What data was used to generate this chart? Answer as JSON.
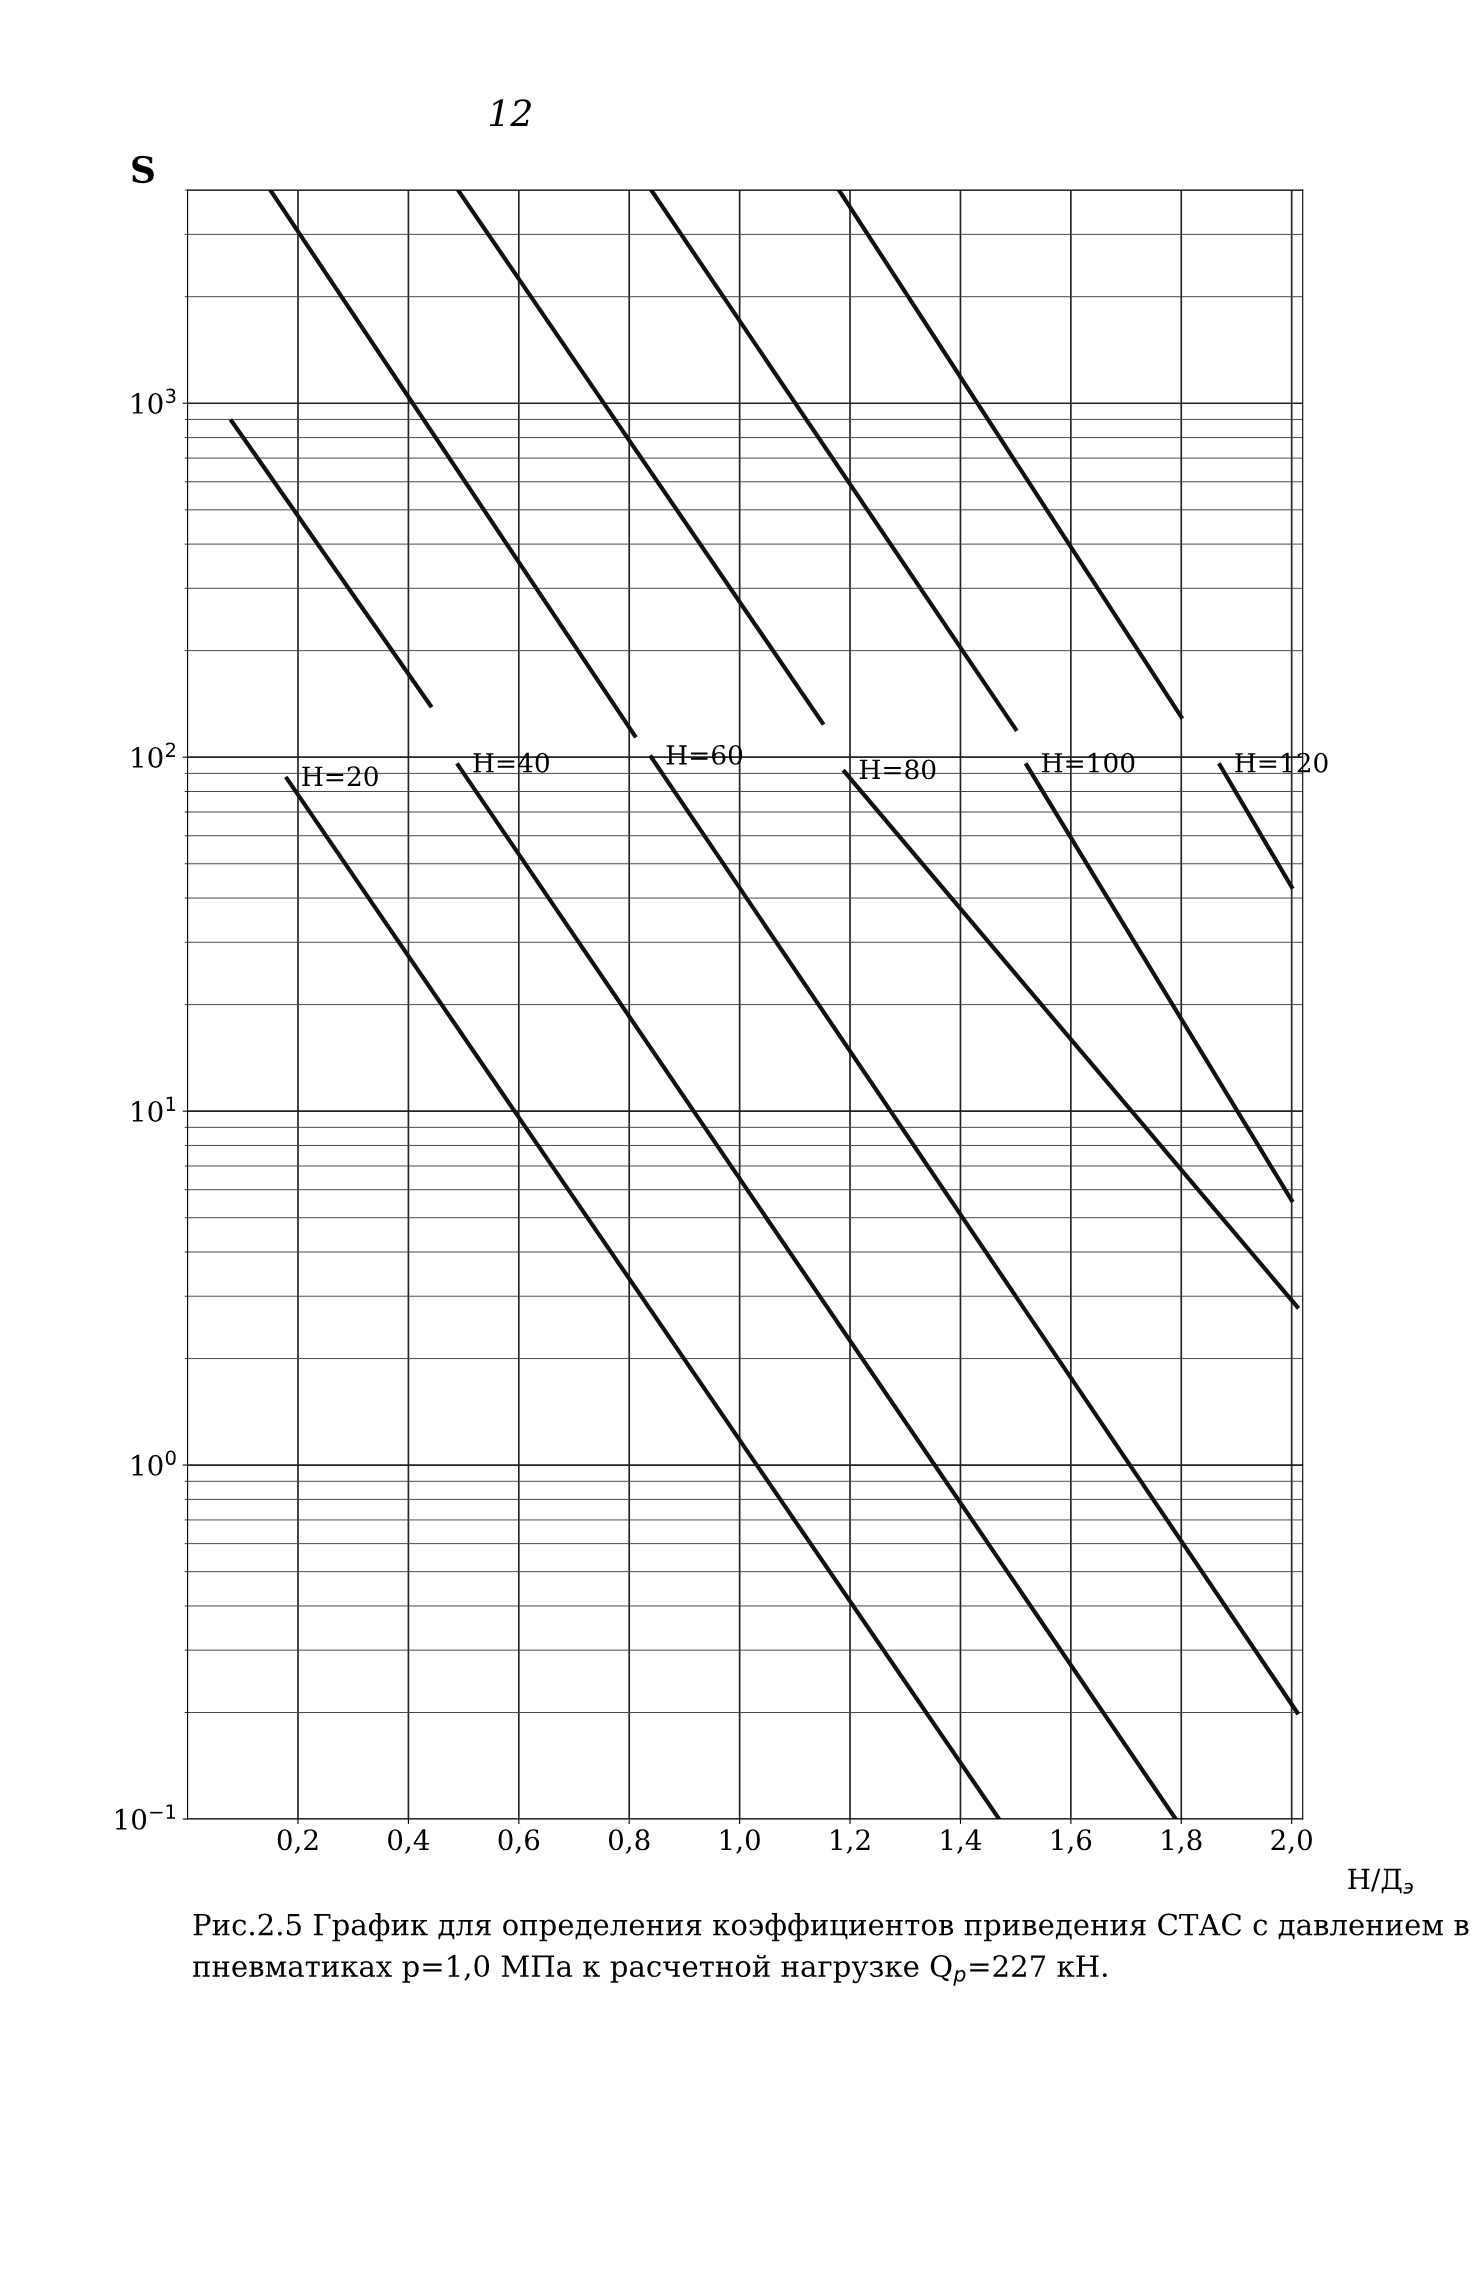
{
  "chart_data": {
    "type": "line",
    "title": "12",
    "ylabel": "S",
    "xlabel": "Н/Д$_{э}$",
    "annotations": [
      "Рис.2.5 График для определения коэффициентов приведения СТАС с давлением в пневматиках p=1,0 МПа к расчетной нагрузке Q$_{р}$=227 кН."
    ],
    "log": "y",
    "grid": true,
    "legend": false,
    "marker": "none",
    "line_style": "solid",
    "xlim": [
      0,
      2.02
    ],
    "ylim": [
      0.1,
      4000
    ],
    "xticks": [
      {
        "value": 0.2,
        "label": "0,2"
      },
      {
        "value": 0.4,
        "label": "0,4"
      },
      {
        "value": 0.6,
        "label": "0,6"
      },
      {
        "value": 0.8,
        "label": "0,8"
      },
      {
        "value": 1.0,
        "label": "1,0"
      },
      {
        "value": 1.2,
        "label": "1,2"
      },
      {
        "value": 1.4,
        "label": "1,4"
      },
      {
        "value": 1.6,
        "label": "1,6"
      },
      {
        "value": 1.8,
        "label": "1,8"
      },
      {
        "value": 2.0,
        "label": "2,0"
      }
    ],
    "yticks": [
      {
        "value": 0.1,
        "label": "10$^{−1}$"
      },
      {
        "value": 1,
        "label": "10$^{0}$"
      },
      {
        "value": 10,
        "label": "10$^{1}$"
      },
      {
        "value": 100,
        "label": "10$^{2}$"
      },
      {
        "value": 1000,
        "label": "10$^{3}$"
      }
    ],
    "series": [
      {
        "name": "H=20",
        "color": "#111111",
        "x": [
          0.18,
          1.47
        ],
        "values": [
          87,
          0.1
        ]
      },
      {
        "name": "H=40",
        "color": "#111111",
        "x": [
          0.49,
          1.79
        ],
        "values": [
          95,
          0.1
        ]
      },
      {
        "name": "H=60",
        "color": "#111111",
        "x": [
          0.84,
          2.01
        ],
        "values": [
          100,
          0.2
        ]
      },
      {
        "name": "H=80",
        "color": "#111111",
        "x": [
          1.19,
          2.01
        ],
        "values": [
          91,
          2.8
        ]
      },
      {
        "name": "H=100",
        "color": "#111111",
        "x": [
          1.52,
          2.0
        ],
        "values": [
          95,
          5.6
        ]
      },
      {
        "name": "H=120",
        "color": "#111111",
        "x": [
          1.87,
          2.0
        ],
        "values": [
          95,
          43
        ]
      },
      {
        "color": "#111111",
        "x": [
          0.08,
          0.44
        ],
        "values": [
          890,
          140
        ]
      },
      {
        "color": "#111111",
        "x": [
          0.15,
          0.81
        ],
        "values": [
          4000,
          115
        ]
      },
      {
        "color": "#111111",
        "x": [
          0.49,
          1.15
        ],
        "values": [
          4000,
          125
        ]
      },
      {
        "color": "#111111",
        "x": [
          0.84,
          1.5
        ],
        "values": [
          4000,
          120
        ]
      },
      {
        "color": "#111111",
        "x": [
          1.18,
          1.8
        ],
        "values": [
          4000,
          130
        ]
      }
    ]
  }
}
